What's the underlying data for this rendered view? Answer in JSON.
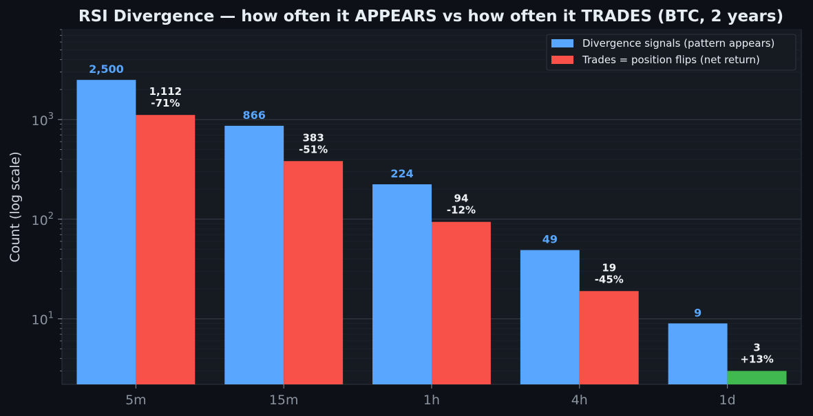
{
  "colors": {
    "page_bg": "#0d1017",
    "plot_bg": "#161b22",
    "signals": "#58a6ff",
    "trades_negative": "#f85149",
    "trades_positive": "#3fb950"
  },
  "chart_data": {
    "type": "bar",
    "title": "RSI Divergence — how often it APPEARS vs how often it TRADES (BTC, 2 years)",
    "ylabel": "Count (log scale)",
    "yscale": "log",
    "ylim": [
      2.2,
      8000
    ],
    "yticks": [
      {
        "value": 10,
        "base": "10",
        "exp": "1"
      },
      {
        "value": 100,
        "base": "10",
        "exp": "2"
      },
      {
        "value": 1000,
        "base": "10",
        "exp": "3"
      }
    ],
    "grid": true,
    "legend_position": "top-right",
    "categories": [
      "5m",
      "15m",
      "1h",
      "4h",
      "1d"
    ],
    "series": [
      {
        "name": "Divergence signals (pattern appears)",
        "values": [
          2500,
          866,
          224,
          49,
          9
        ],
        "labels": [
          "2,500",
          "866",
          "224",
          "49",
          "9"
        ]
      },
      {
        "name": "Trades = position flips (net return)",
        "values": [
          1112,
          383,
          94,
          19,
          3
        ],
        "labels": [
          "1,112",
          "383",
          "94",
          "19",
          "3"
        ],
        "net_return": [
          "-71%",
          "-51%",
          "-12%",
          "-45%",
          "+13%"
        ]
      }
    ]
  }
}
